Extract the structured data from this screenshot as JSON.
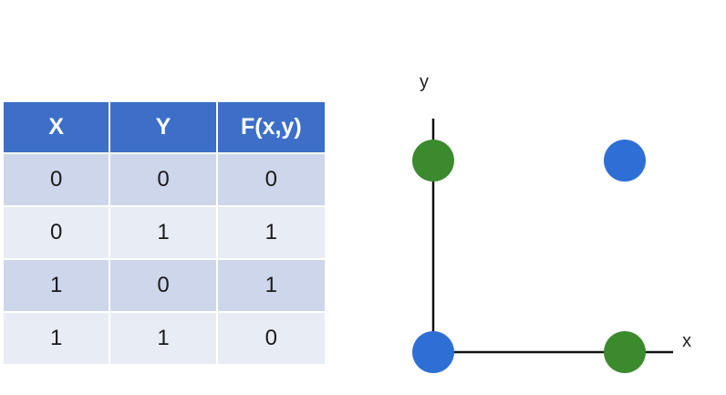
{
  "table": {
    "headers": [
      "X",
      "Y",
      "F(x,y)"
    ],
    "rows": [
      [
        "0",
        "0",
        "0"
      ],
      [
        "0",
        "1",
        "1"
      ],
      [
        "1",
        "0",
        "1"
      ],
      [
        "1",
        "1",
        "0"
      ]
    ]
  },
  "plot": {
    "x_label": "x",
    "y_label": "y",
    "points": [
      {
        "x": 0,
        "y": 0,
        "color": "#2e6fd6"
      },
      {
        "x": 0,
        "y": 1,
        "color": "#3c8a2e"
      },
      {
        "x": 1,
        "y": 0,
        "color": "#3c8a2e"
      },
      {
        "x": 1,
        "y": 1,
        "color": "#2e6fd6"
      }
    ]
  },
  "colors": {
    "header_background": "#3d6fc8",
    "row_dark": "#cdd6ea",
    "row_light": "#e8ecf5",
    "class_0_color": "#2e6fd6",
    "class_1_color": "#3c8a2e"
  }
}
